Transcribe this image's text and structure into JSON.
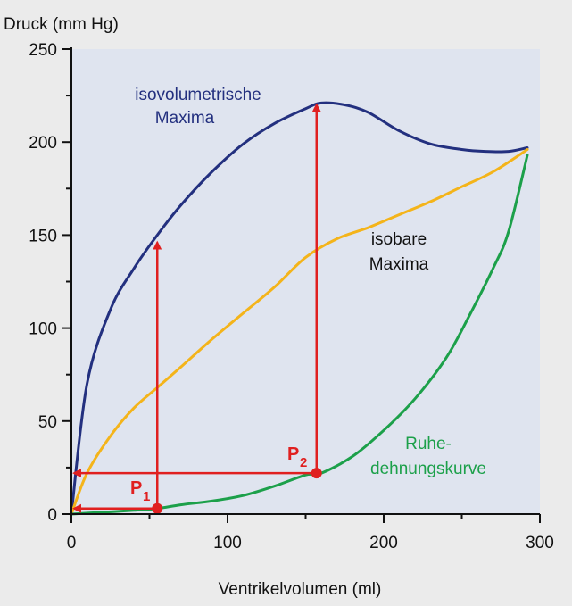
{
  "chart_data": {
    "type": "line",
    "title": "",
    "ylabel": "Druck (mm Hg)",
    "xlabel": "Ventrikelvolumen (ml)",
    "xlim": [
      0,
      300
    ],
    "ylim": [
      0,
      250
    ],
    "x_ticks": [
      0,
      100,
      200,
      300
    ],
    "y_ticks": [
      0,
      50,
      100,
      150,
      200,
      250
    ],
    "grid": false,
    "series": [
      {
        "name": "isovolumetrische Maxima",
        "color": "#23307f",
        "x": [
          0,
          10,
          25,
          40,
          55,
          70,
          90,
          110,
          130,
          150,
          160,
          175,
          190,
          210,
          230,
          250,
          265,
          280,
          292
        ],
        "y": [
          0,
          70,
          110,
          132,
          150,
          166,
          184,
          199,
          210,
          218,
          221,
          220,
          216,
          206,
          199,
          196,
          195,
          195,
          197
        ]
      },
      {
        "name": "isobare Maxima",
        "color": "#f4b41a",
        "x": [
          0,
          10,
          25,
          40,
          55,
          70,
          90,
          110,
          130,
          150,
          170,
          190,
          210,
          230,
          250,
          270,
          292
        ],
        "y": [
          0,
          22,
          42,
          57,
          68,
          79,
          94,
          108,
          122,
          138,
          148,
          154,
          161,
          168,
          176,
          184,
          196
        ]
      },
      {
        "name": "Ruhedehnungskurve",
        "color": "#1ca04a",
        "x": [
          0,
          20,
          40,
          55,
          70,
          90,
          110,
          130,
          150,
          160,
          180,
          200,
          220,
          240,
          255,
          270,
          280,
          292
        ],
        "y": [
          0,
          1,
          2,
          3,
          5,
          7,
          10,
          15,
          21,
          22,
          31,
          45,
          62,
          84,
          107,
          132,
          152,
          193
        ]
      }
    ],
    "annotations": {
      "iso_line1": "isovolumetrische",
      "iso_line2": "Maxima",
      "isobar_line1": "isobare",
      "isobar_line2": "Maxima",
      "ruhe_line1": "Ruhe-",
      "ruhe_line2": "dehnungskurve",
      "p1": "P",
      "p1_sub": "1",
      "p2": "P",
      "p2_sub": "2"
    },
    "points": [
      {
        "label": "P1",
        "x": 55,
        "y": 3,
        "arrow_up_to": 147
      },
      {
        "label": "P2",
        "x": 157,
        "y": 22,
        "arrow_up_to": 221
      }
    ],
    "arrow_color": "#e02020",
    "panel_color": "#dfe4ef"
  }
}
